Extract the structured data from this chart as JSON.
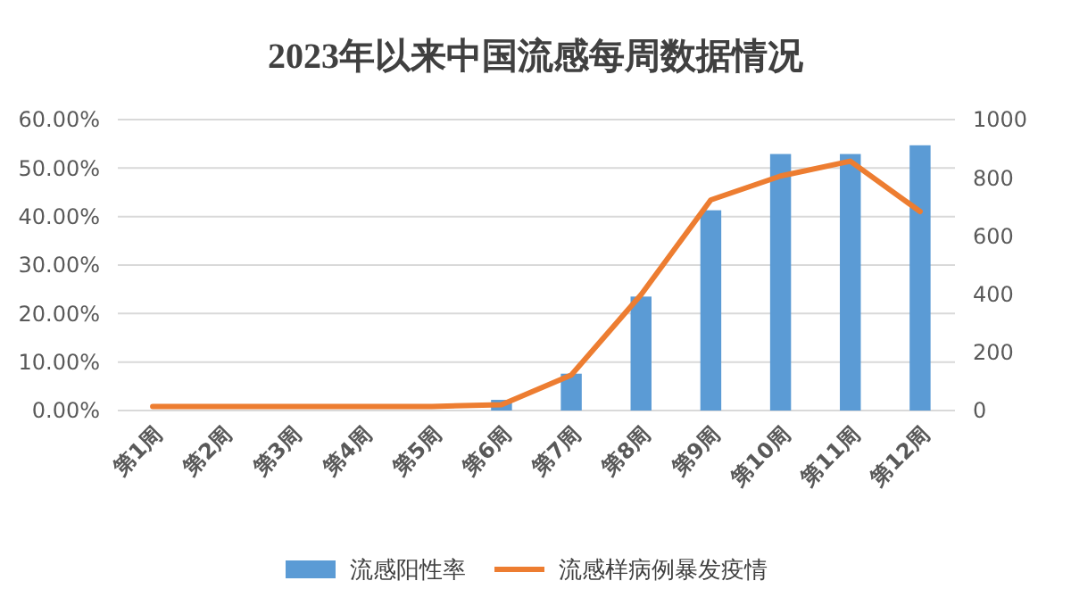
{
  "chart_data": {
    "type": "bar",
    "title": "2023年以来中国流感每周数据情况",
    "categories": [
      "第1周",
      "第2周",
      "第3周",
      "第4周",
      "第5周",
      "第6周",
      "第7周",
      "第8周",
      "第9周",
      "第10周",
      "第11周",
      "第12周"
    ],
    "series": [
      {
        "name": "流感阳性率",
        "color": "#5b9bd5",
        "values": [
          0,
          0,
          0,
          0,
          0,
          2.2,
          7.6,
          23.5,
          41.3,
          52.9,
          52.9,
          54.7
        ]
      },
      {
        "name": "流感样病例暴发疫情",
        "type": "line",
        "axis": "y2",
        "color": "#ed7d31",
        "values": [
          14,
          14,
          14,
          14,
          14,
          20,
          122,
          398,
          724,
          806,
          857,
          684
        ]
      }
    ],
    "ylim": [
      0,
      60
    ],
    "yticks": [
      {
        "value": 0,
        "label": "0.00%"
      },
      {
        "value": 10,
        "label": "10.00%"
      },
      {
        "value": 20,
        "label": "20.00%"
      },
      {
        "value": 30,
        "label": "30.00%"
      },
      {
        "value": 40,
        "label": "40.00%"
      },
      {
        "value": 50,
        "label": "50.00%"
      },
      {
        "value": 60,
        "label": "60.00%"
      }
    ],
    "y2lim": [
      0,
      1000
    ],
    "y2ticks": [
      0,
      200,
      400,
      600,
      800,
      1000
    ],
    "grid": "y",
    "legend": "bottom",
    "marker": "none",
    "line_style": "solid"
  }
}
